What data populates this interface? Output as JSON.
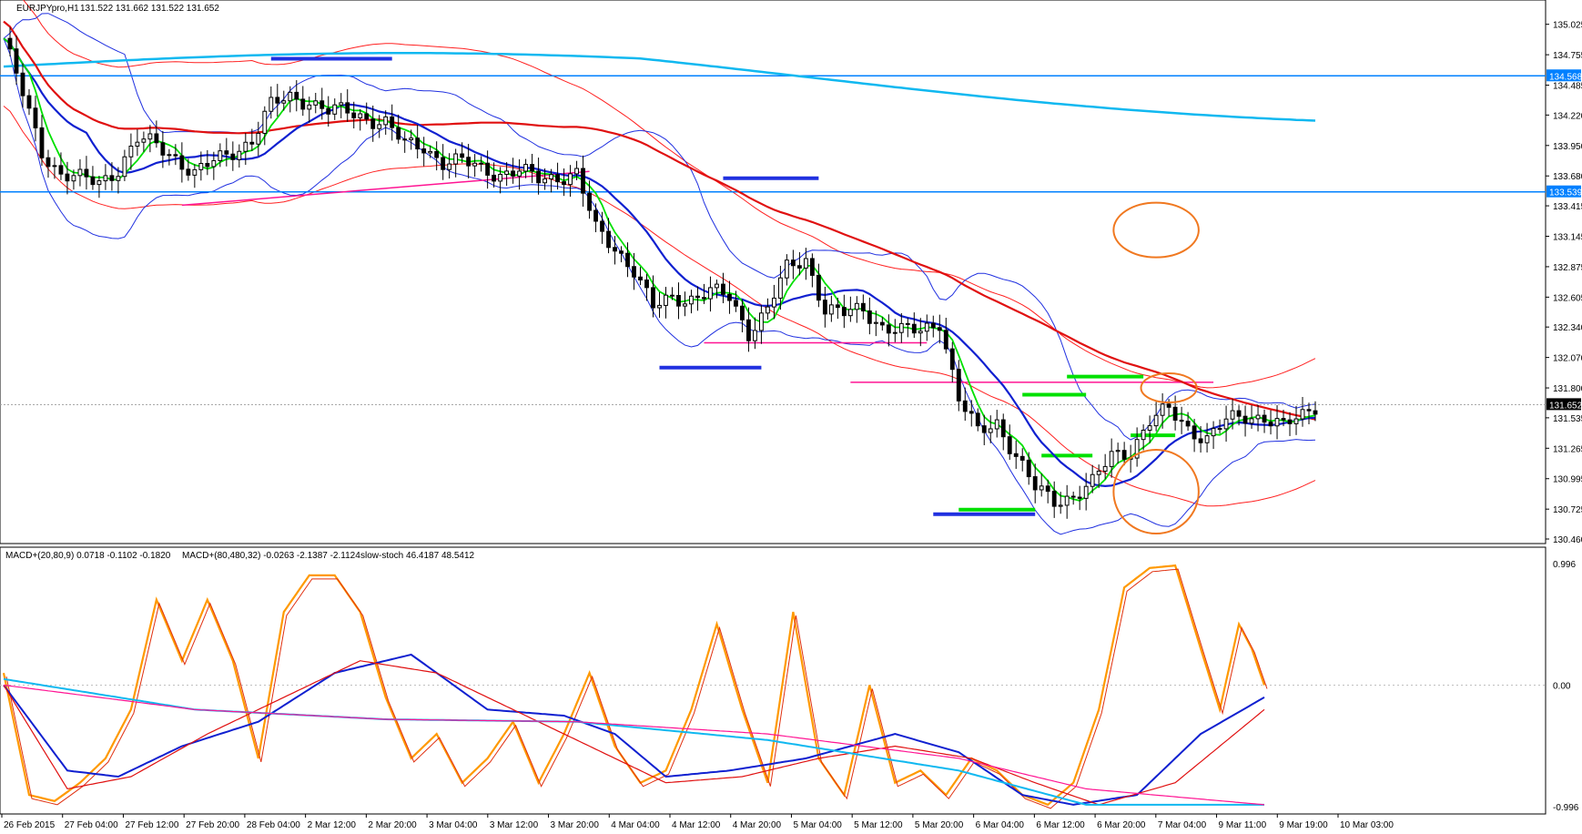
{
  "header": {
    "symbol": "EURJPYpro,H1",
    "ohlc": "131.522 131.662 131.522 131.652"
  },
  "indicator_header": {
    "macd1": "MACD+(20,80,9) 0.0718 -0.1102 -0.1820",
    "macd2": "MACD+(80,480,32) -0.0263 -2.1387 -2.1124",
    "stoch": "slow-stoch 46.4187 48.5412"
  },
  "colors": {
    "candle_up": "#ffffff",
    "candle_down": "#000000",
    "green_ma": "#00e000",
    "blue_ma": "#1020d0",
    "red_ma": "#e01010",
    "cyan_ma": "#10b8f0",
    "bollinger": "#2030e0",
    "envelope": "#ff2020",
    "hline": "#0080ff",
    "magenta": "#ff1493",
    "annotation_orange": "#f07820",
    "stoch_main": "#ff9900"
  },
  "chart_data": [
    {
      "type": "candlestick",
      "symbol": "EURJPYpro",
      "timeframe": "H1",
      "ylim": [
        130.46,
        135.2
      ],
      "y_ticks": [
        "135.025",
        "134.755",
        "134.485",
        "134.220",
        "133.950",
        "133.680",
        "133.415",
        "133.145",
        "132.875",
        "132.605",
        "132.340",
        "132.070",
        "131.800",
        "131.535",
        "131.265",
        "130.995",
        "130.725",
        "130.460"
      ],
      "x_ticks": [
        "26 Feb 2015",
        "27 Feb 04:00",
        "27 Feb 12:00",
        "27 Feb 20:00",
        "28 Feb 04:00",
        "2 Mar 12:00",
        "2 Mar 20:00",
        "3 Mar 04:00",
        "3 Mar 12:00",
        "3 Mar 20:00",
        "4 Mar 04:00",
        "4 Mar 12:00",
        "4 Mar 20:00",
        "5 Mar 04:00",
        "5 Mar 12:00",
        "5 Mar 20:00",
        "6 Mar 04:00",
        "6 Mar 12:00",
        "6 Mar 20:00",
        "7 Mar 04:00",
        "9 Mar 11:00",
        "9 Mar 19:00",
        "10 Mar 03:00"
      ],
      "price_tags": [
        {
          "value": "134.568",
          "level": 134.568
        },
        {
          "value": "133.539",
          "level": 133.539
        },
        {
          "value": "131.652",
          "level": 131.652
        }
      ],
      "close_path": [
        [
          0,
          134.9
        ],
        [
          3,
          134.4
        ],
        [
          6,
          133.9
        ],
        [
          9,
          133.7
        ],
        [
          12,
          133.65
        ],
        [
          15,
          133.62
        ],
        [
          18,
          133.75
        ],
        [
          21,
          134.0
        ],
        [
          24,
          133.95
        ],
        [
          27,
          133.85
        ],
        [
          30,
          133.7
        ],
        [
          33,
          133.8
        ],
        [
          36,
          133.9
        ],
        [
          39,
          134.0
        ],
        [
          42,
          134.3
        ],
        [
          45,
          134.38
        ],
        [
          48,
          134.35
        ],
        [
          51,
          134.25
        ],
        [
          54,
          134.25
        ],
        [
          57,
          134.2
        ],
        [
          60,
          134.15
        ],
        [
          63,
          133.95
        ],
        [
          66,
          133.95
        ],
        [
          69,
          133.8
        ],
        [
          72,
          133.8
        ],
        [
          75,
          133.75
        ],
        [
          78,
          133.7
        ],
        [
          81,
          133.72
        ],
        [
          84,
          133.65
        ],
        [
          87,
          133.68
        ],
        [
          90,
          133.7
        ],
        [
          93,
          133.2
        ],
        [
          96,
          133.05
        ],
        [
          99,
          132.85
        ],
        [
          102,
          132.5
        ],
        [
          105,
          132.6
        ],
        [
          108,
          132.6
        ],
        [
          111,
          132.65
        ],
        [
          114,
          132.6
        ],
        [
          117,
          132.3
        ],
        [
          120,
          132.5
        ],
        [
          123,
          132.85
        ],
        [
          126,
          132.95
        ],
        [
          129,
          132.5
        ],
        [
          132,
          132.45
        ],
        [
          135,
          132.5
        ],
        [
          138,
          132.35
        ],
        [
          141,
          132.3
        ],
        [
          144,
          132.3
        ],
        [
          147,
          132.4
        ],
        [
          150,
          131.7
        ],
        [
          153,
          131.4
        ],
        [
          156,
          131.5
        ],
        [
          159,
          131.2
        ],
        [
          162,
          130.9
        ],
        [
          165,
          130.8
        ],
        [
          168,
          130.85
        ],
        [
          171,
          130.95
        ],
        [
          174,
          131.2
        ],
        [
          177,
          131.25
        ],
        [
          180,
          131.5
        ],
        [
          183,
          131.6
        ],
        [
          186,
          131.45
        ],
        [
          189,
          131.35
        ],
        [
          192,
          131.5
        ],
        [
          195,
          131.55
        ],
        [
          198,
          131.55
        ],
        [
          201,
          131.45
        ],
        [
          204,
          131.55
        ],
        [
          206,
          131.65
        ]
      ],
      "hlines": [
        134.568,
        133.539
      ],
      "annotations": [
        "orange ellipse near 133.2",
        "orange ellipse near 131.8",
        "orange ellipse near 130.9"
      ]
    },
    {
      "type": "line",
      "name": "MACD+ / slow-stoch",
      "ylim": [
        -0.996,
        0.996
      ],
      "y_ticks": [
        "0.996",
        "0.00",
        "-0.996"
      ],
      "series": [
        {
          "name": "slow-stoch",
          "color": "#ff9900",
          "values": [
            [
              0,
              0.1
            ],
            [
              4,
              -0.9
            ],
            [
              8,
              -0.95
            ],
            [
              12,
              -0.8
            ],
            [
              16,
              -0.6
            ],
            [
              20,
              -0.2
            ],
            [
              24,
              0.7
            ],
            [
              28,
              0.2
            ],
            [
              32,
              0.7
            ],
            [
              36,
              0.2
            ],
            [
              40,
              -0.6
            ],
            [
              44,
              0.6
            ],
            [
              48,
              0.9
            ],
            [
              52,
              0.9
            ],
            [
              56,
              0.6
            ],
            [
              60,
              -0.1
            ],
            [
              64,
              -0.6
            ],
            [
              68,
              -0.4
            ],
            [
              72,
              -0.8
            ],
            [
              76,
              -0.6
            ],
            [
              80,
              -0.3
            ],
            [
              84,
              -0.8
            ],
            [
              88,
              -0.4
            ],
            [
              92,
              0.1
            ],
            [
              96,
              -0.5
            ],
            [
              100,
              -0.8
            ],
            [
              104,
              -0.7
            ],
            [
              108,
              -0.2
            ],
            [
              112,
              0.5
            ],
            [
              116,
              -0.2
            ],
            [
              120,
              -0.8
            ],
            [
              124,
              0.6
            ],
            [
              128,
              -0.6
            ],
            [
              132,
              -0.9
            ],
            [
              136,
              0.0
            ],
            [
              140,
              -0.8
            ],
            [
              144,
              -0.7
            ],
            [
              148,
              -0.9
            ],
            [
              152,
              -0.6
            ],
            [
              156,
              -0.7
            ],
            [
              160,
              -0.9
            ],
            [
              164,
              -0.98
            ],
            [
              168,
              -0.8
            ],
            [
              172,
              -0.2
            ],
            [
              176,
              0.8
            ],
            [
              180,
              0.96
            ],
            [
              184,
              0.98
            ],
            [
              188,
              0.3
            ],
            [
              191,
              -0.2
            ],
            [
              194,
              0.5
            ],
            [
              196,
              0.3
            ],
            [
              198,
              0.0
            ]
          ]
        },
        {
          "name": "MACD main",
          "color": "#1020d0",
          "values": [
            [
              0,
              0.0
            ],
            [
              10,
              -0.7
            ],
            [
              18,
              -0.75
            ],
            [
              28,
              -0.5
            ],
            [
              40,
              -0.3
            ],
            [
              52,
              0.1
            ],
            [
              64,
              0.25
            ],
            [
              76,
              -0.2
            ],
            [
              88,
              -0.25
            ],
            [
              96,
              -0.4
            ],
            [
              104,
              -0.75
            ],
            [
              114,
              -0.7
            ],
            [
              126,
              -0.6
            ],
            [
              140,
              -0.4
            ],
            [
              150,
              -0.55
            ],
            [
              160,
              -0.9
            ],
            [
              168,
              -0.98
            ],
            [
              178,
              -0.9
            ],
            [
              188,
              -0.4
            ],
            [
              198,
              -0.1
            ]
          ]
        },
        {
          "name": "MACD signal",
          "color": "#e01010",
          "values": [
            [
              0,
              0.0
            ],
            [
              10,
              -0.85
            ],
            [
              20,
              -0.75
            ],
            [
              32,
              -0.4
            ],
            [
              44,
              -0.1
            ],
            [
              56,
              0.2
            ],
            [
              68,
              0.1
            ],
            [
              80,
              -0.2
            ],
            [
              92,
              -0.5
            ],
            [
              104,
              -0.8
            ],
            [
              116,
              -0.75
            ],
            [
              128,
              -0.6
            ],
            [
              140,
              -0.5
            ],
            [
              152,
              -0.6
            ],
            [
              162,
              -0.8
            ],
            [
              172,
              -0.98
            ],
            [
              184,
              -0.8
            ],
            [
              198,
              -0.2
            ]
          ]
        },
        {
          "name": "MACD2 main",
          "color": "#10b8f0",
          "values": [
            [
              0,
              0.05
            ],
            [
              30,
              -0.2
            ],
            [
              60,
              -0.28
            ],
            [
              90,
              -0.3
            ],
            [
              120,
              -0.45
            ],
            [
              150,
              -0.7
            ],
            [
              170,
              -0.98
            ],
            [
              198,
              -0.98
            ]
          ]
        },
        {
          "name": "MACD2 signal",
          "color": "#ff1493",
          "values": [
            [
              0,
              0.0
            ],
            [
              30,
              -0.2
            ],
            [
              60,
              -0.28
            ],
            [
              90,
              -0.3
            ],
            [
              120,
              -0.4
            ],
            [
              150,
              -0.6
            ],
            [
              170,
              -0.85
            ],
            [
              198,
              -0.98
            ]
          ]
        }
      ]
    }
  ]
}
